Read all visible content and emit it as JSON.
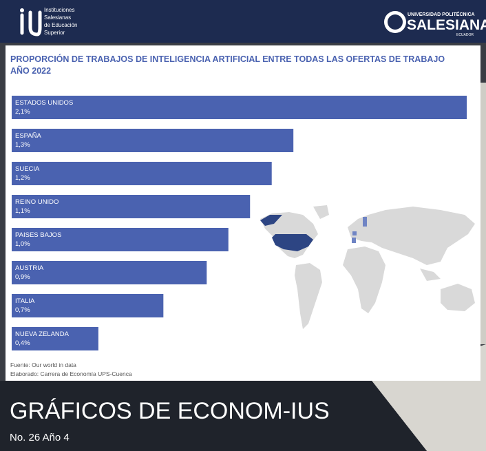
{
  "header": {
    "institution_lines": [
      "Instituciones",
      "Salesianas",
      "de Educación",
      "Superior"
    ],
    "university_top": "UNIVERSIDAD POLITÉCNICA",
    "university_name": "SALESIANA",
    "university_country": "ECUADOR"
  },
  "chart_data": {
    "type": "bar",
    "orientation": "horizontal",
    "title": "PROPORCIÓN DE TRABAJOS DE INTELIGENCIA ARTIFICIAL ENTRE TODAS LAS OFERTAS DE TRABAJO",
    "subtitle": "AÑO 2022",
    "categories": [
      "ESTADOS UNIDOS",
      "ESPAÑA",
      "SUECIA",
      "REINO UNIDO",
      "PAISES BAJOS",
      "AUSTRIA",
      "ITALIA",
      "NUEVA ZELANDA"
    ],
    "values": [
      2.1,
      1.3,
      1.2,
      1.1,
      1.0,
      0.9,
      0.7,
      0.4
    ],
    "value_labels": [
      "2,1%",
      "1,3%",
      "1,2%",
      "1,1%",
      "1,0%",
      "0,9%",
      "0,7%",
      "0,4%"
    ],
    "color": "#4a62b0"
  },
  "notes": [
    "Fuente: Our world in data",
    "Elaborado: Carrera de Economía UPS-Cuenca"
  ],
  "footer": {
    "title": "GRÁFICOS DE ECONOM-IUS",
    "issue": "No. 26 Año 4"
  }
}
